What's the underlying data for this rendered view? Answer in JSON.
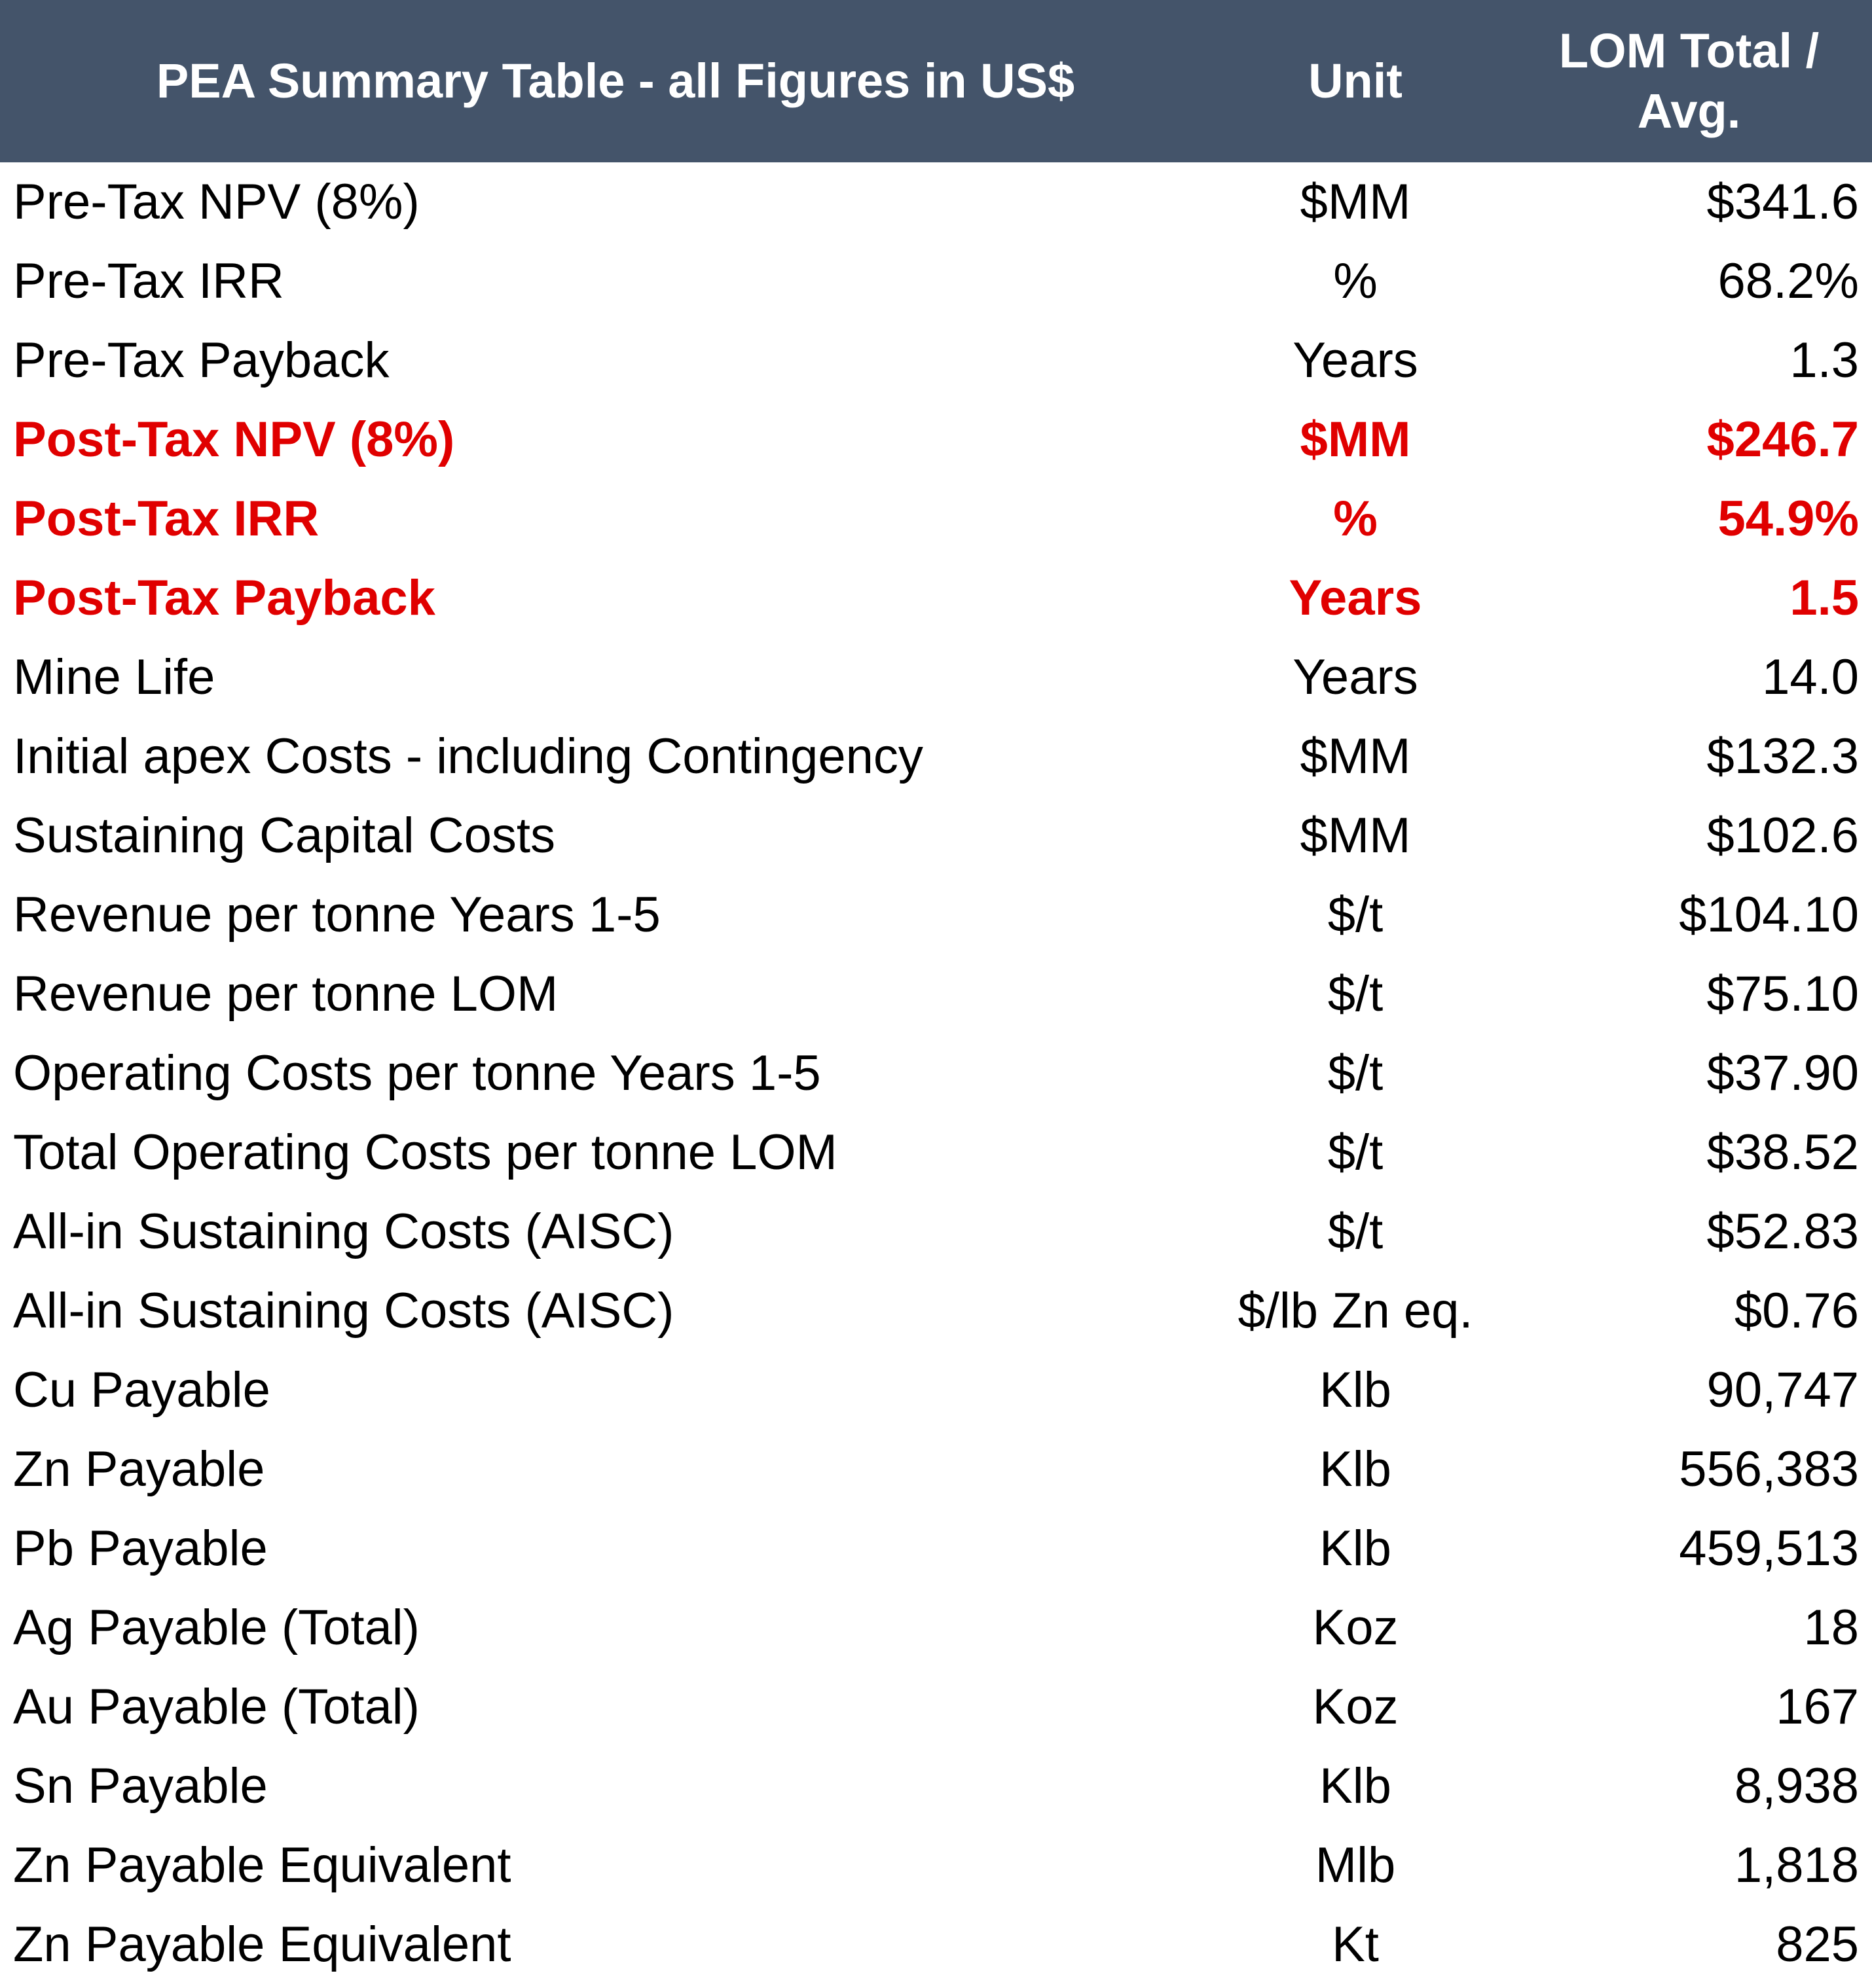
{
  "table": {
    "columns": [
      "PEA Summary Table - all Figures in US$",
      "Unit",
      "LOM Total / Avg."
    ],
    "rows": [
      [
        "Pre-Tax NPV (8%)",
        "$MM",
        "$341.6"
      ],
      [
        "Pre-Tax IRR",
        "%",
        "68.2%"
      ],
      [
        "Pre-Tax Payback",
        "Years",
        "1.3"
      ],
      [
        "Post-Tax NPV (8%)",
        "$MM",
        "$246.7"
      ],
      [
        "Post-Tax IRR",
        "%",
        "54.9%"
      ],
      [
        "Post-Tax Payback",
        "Years",
        "1.5"
      ],
      [
        "Mine Life",
        "Years",
        "14.0"
      ],
      [
        "Initial apex Costs - including Contingency",
        "$MM",
        "$132.3"
      ],
      [
        "Sustaining Capital Costs",
        "$MM",
        "$102.6"
      ],
      [
        "Revenue per tonne Years 1-5",
        "$/t",
        "$104.10"
      ],
      [
        "Revenue per tonne LOM",
        "$/t",
        "$75.10"
      ],
      [
        "Operating Costs per tonne Years 1-5",
        "$/t",
        "$37.90"
      ],
      [
        "Total Operating Costs per tonne LOM",
        "$/t",
        "$38.52"
      ],
      [
        "All-in Sustaining Costs (AISC)",
        "$/t",
        "$52.83"
      ],
      [
        "All-in Sustaining Costs (AISC)",
        "$/lb Zn eq.",
        "$0.76"
      ],
      [
        "Cu Payable",
        "Klb",
        "90,747"
      ],
      [
        "Zn Payable",
        "Klb",
        "556,383"
      ],
      [
        "Pb Payable",
        "Klb",
        "459,513"
      ],
      [
        "Ag Payable (Total)",
        "Koz",
        "18"
      ],
      [
        "Au Payable (Total)",
        "Koz",
        "167"
      ],
      [
        "Sn Payable",
        "Klb",
        "8,938"
      ],
      [
        "Zn Payable Equivalent",
        "Mlb",
        "1,818"
      ],
      [
        "Zn Payable Equivalent",
        "Kt",
        "825"
      ]
    ]
  }
}
